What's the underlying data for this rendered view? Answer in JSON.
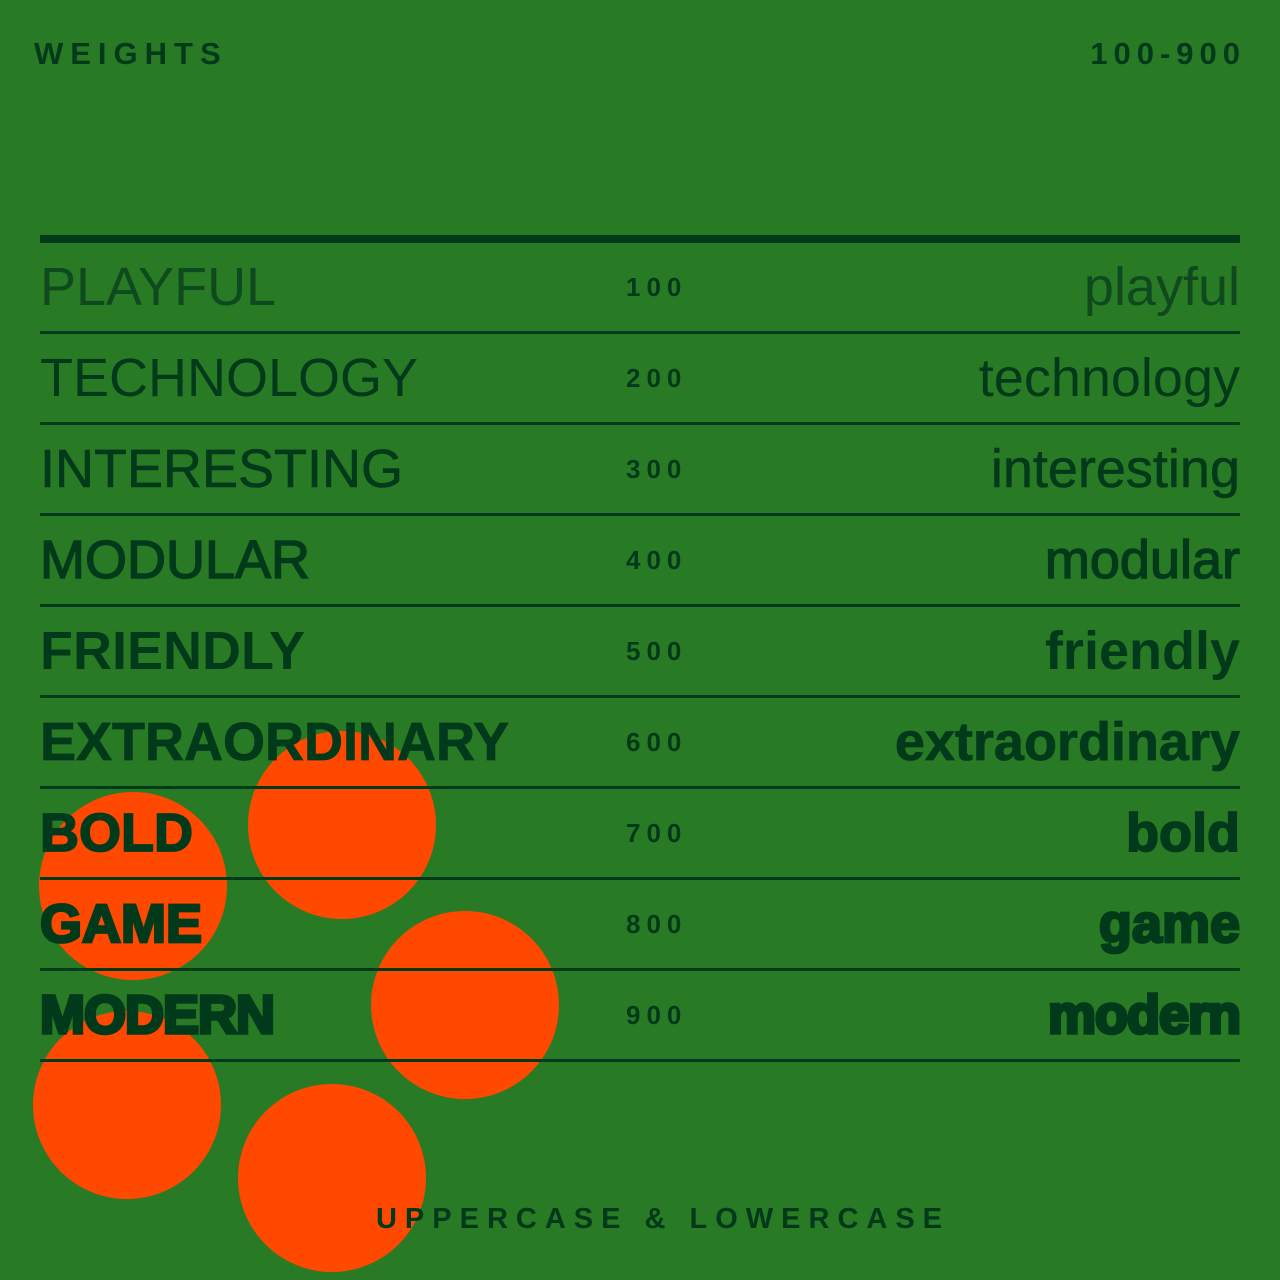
{
  "header": {
    "title": "WEIGHTS",
    "range": "100-900"
  },
  "colors": {
    "background": "#297a25",
    "ink": "#003a1a",
    "accent": "#ff4800"
  },
  "rows": [
    {
      "upper": "PLAYFUL",
      "weight": "100",
      "lower": "playful"
    },
    {
      "upper": "TECHNOLOGY",
      "weight": "200",
      "lower": "technology"
    },
    {
      "upper": "INTERESTING",
      "weight": "300",
      "lower": "interesting"
    },
    {
      "upper": "MODULAR",
      "weight": "400",
      "lower": "modular"
    },
    {
      "upper": "FRIENDLY",
      "weight": "500",
      "lower": "friendly"
    },
    {
      "upper": "EXTRAORDINARY",
      "weight": "600",
      "lower": "extraordinary"
    },
    {
      "upper": "BOLD",
      "weight": "700",
      "lower": "bold"
    },
    {
      "upper": "GAME",
      "weight": "800",
      "lower": "game"
    },
    {
      "upper": "MODERN",
      "weight": "900",
      "lower": "modern"
    }
  ],
  "footer": "UPPERCASE & LOWERCASE"
}
